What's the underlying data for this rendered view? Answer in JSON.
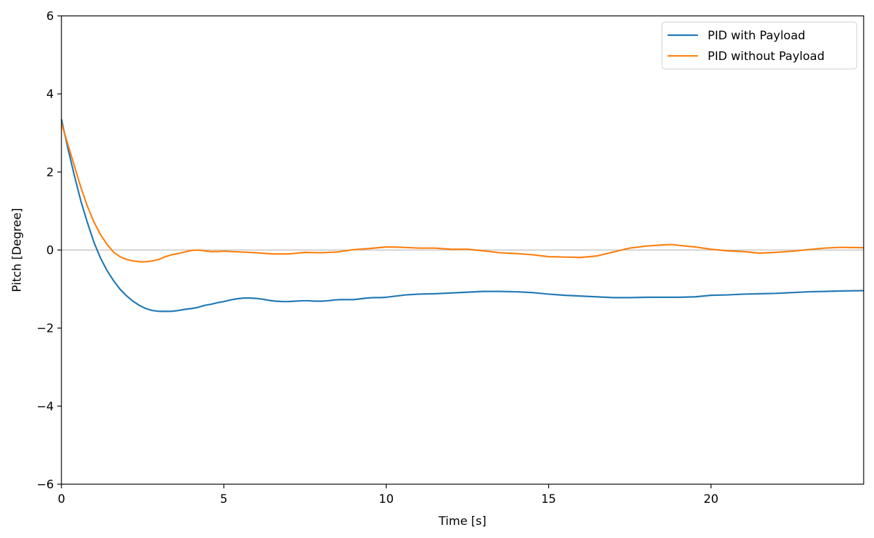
{
  "chart_data": {
    "type": "line",
    "title": "",
    "xlabel": "Time [s]",
    "ylabel": "Pitch [Degree]",
    "xlim": [
      0,
      24.7
    ],
    "ylim": [
      -6,
      6
    ],
    "xticks": [
      0,
      5,
      10,
      15,
      20
    ],
    "xtick_labels": [
      "0",
      "5",
      "10",
      "15",
      "20"
    ],
    "yticks": [
      -6,
      -4,
      -2,
      0,
      2,
      4,
      6
    ],
    "ytick_labels": [
      "−6",
      "−4",
      "−2",
      "0",
      "2",
      "4",
      "6"
    ],
    "grid": false,
    "zero_line": true,
    "legend_position": "top-right",
    "series": [
      {
        "name": "PID with Payload",
        "color": "#1f77b4",
        "points": [
          [
            0,
            3.35
          ],
          [
            0.2,
            2.6
          ],
          [
            0.4,
            1.9
          ],
          [
            0.6,
            1.25
          ],
          [
            0.8,
            0.7
          ],
          [
            1.0,
            0.2
          ],
          [
            1.2,
            -0.2
          ],
          [
            1.4,
            -0.52
          ],
          [
            1.6,
            -0.78
          ],
          [
            1.8,
            -1.0
          ],
          [
            2.0,
            -1.17
          ],
          [
            2.2,
            -1.31
          ],
          [
            2.4,
            -1.42
          ],
          [
            2.6,
            -1.5
          ],
          [
            2.8,
            -1.55
          ],
          [
            3.0,
            -1.57
          ],
          [
            3.2,
            -1.57
          ],
          [
            3.4,
            -1.57
          ],
          [
            3.6,
            -1.55
          ],
          [
            3.8,
            -1.52
          ],
          [
            4.0,
            -1.5
          ],
          [
            4.2,
            -1.47
          ],
          [
            4.4,
            -1.42
          ],
          [
            4.6,
            -1.39
          ],
          [
            4.8,
            -1.35
          ],
          [
            5.0,
            -1.32
          ],
          [
            5.2,
            -1.28
          ],
          [
            5.4,
            -1.25
          ],
          [
            5.6,
            -1.23
          ],
          [
            5.8,
            -1.23
          ],
          [
            6.0,
            -1.24
          ],
          [
            6.2,
            -1.26
          ],
          [
            6.4,
            -1.29
          ],
          [
            6.6,
            -1.31
          ],
          [
            6.8,
            -1.32
          ],
          [
            7.0,
            -1.32
          ],
          [
            7.2,
            -1.31
          ],
          [
            7.4,
            -1.3
          ],
          [
            7.6,
            -1.3
          ],
          [
            7.8,
            -1.31
          ],
          [
            8.0,
            -1.31
          ],
          [
            8.2,
            -1.3
          ],
          [
            8.4,
            -1.28
          ],
          [
            8.6,
            -1.27
          ],
          [
            8.8,
            -1.27
          ],
          [
            9.0,
            -1.27
          ],
          [
            9.2,
            -1.25
          ],
          [
            9.4,
            -1.23
          ],
          [
            9.6,
            -1.22
          ],
          [
            9.8,
            -1.22
          ],
          [
            10.0,
            -1.21
          ],
          [
            10.2,
            -1.19
          ],
          [
            10.4,
            -1.17
          ],
          [
            10.6,
            -1.15
          ],
          [
            10.8,
            -1.14
          ],
          [
            11.0,
            -1.13
          ],
          [
            11.5,
            -1.12
          ],
          [
            12.0,
            -1.1
          ],
          [
            12.5,
            -1.08
          ],
          [
            13.0,
            -1.06
          ],
          [
            13.5,
            -1.06
          ],
          [
            14.0,
            -1.07
          ],
          [
            14.5,
            -1.09
          ],
          [
            15.0,
            -1.13
          ],
          [
            15.5,
            -1.16
          ],
          [
            16.0,
            -1.18
          ],
          [
            16.5,
            -1.2
          ],
          [
            17.0,
            -1.22
          ],
          [
            17.5,
            -1.22
          ],
          [
            18.0,
            -1.21
          ],
          [
            18.5,
            -1.21
          ],
          [
            19.0,
            -1.21
          ],
          [
            19.5,
            -1.2
          ],
          [
            20.0,
            -1.16
          ],
          [
            20.5,
            -1.15
          ],
          [
            21.0,
            -1.13
          ],
          [
            21.5,
            -1.12
          ],
          [
            22.0,
            -1.11
          ],
          [
            22.5,
            -1.09
          ],
          [
            23.0,
            -1.07
          ],
          [
            23.5,
            -1.06
          ],
          [
            24.0,
            -1.05
          ],
          [
            24.7,
            -1.04
          ]
        ]
      },
      {
        "name": "PID without Payload",
        "color": "#ff7f0e",
        "points": [
          [
            0,
            3.25
          ],
          [
            0.2,
            2.7
          ],
          [
            0.4,
            2.15
          ],
          [
            0.6,
            1.6
          ],
          [
            0.8,
            1.12
          ],
          [
            1.0,
            0.72
          ],
          [
            1.2,
            0.4
          ],
          [
            1.4,
            0.15
          ],
          [
            1.6,
            -0.05
          ],
          [
            1.8,
            -0.17
          ],
          [
            2.0,
            -0.24
          ],
          [
            2.2,
            -0.28
          ],
          [
            2.4,
            -0.3
          ],
          [
            2.6,
            -0.3
          ],
          [
            2.8,
            -0.28
          ],
          [
            3.0,
            -0.24
          ],
          [
            3.2,
            -0.17
          ],
          [
            3.4,
            -0.12
          ],
          [
            3.6,
            -0.09
          ],
          [
            3.8,
            -0.05
          ],
          [
            4.0,
            -0.01
          ],
          [
            4.2,
            0.0
          ],
          [
            4.4,
            -0.02
          ],
          [
            4.6,
            -0.04
          ],
          [
            4.8,
            -0.04
          ],
          [
            5.0,
            -0.03
          ],
          [
            5.5,
            -0.05
          ],
          [
            6.0,
            -0.07
          ],
          [
            6.5,
            -0.1
          ],
          [
            7.0,
            -0.1
          ],
          [
            7.5,
            -0.06
          ],
          [
            8.0,
            -0.07
          ],
          [
            8.5,
            -0.05
          ],
          [
            9.0,
            0.01
          ],
          [
            9.5,
            0.04
          ],
          [
            10.0,
            0.08
          ],
          [
            10.5,
            0.07
          ],
          [
            11.0,
            0.05
          ],
          [
            11.5,
            0.05
          ],
          [
            12.0,
            0.02
          ],
          [
            12.5,
            0.02
          ],
          [
            13.0,
            -0.02
          ],
          [
            13.5,
            -0.07
          ],
          [
            14.0,
            -0.09
          ],
          [
            14.5,
            -0.12
          ],
          [
            15.0,
            -0.17
          ],
          [
            15.5,
            -0.18
          ],
          [
            16.0,
            -0.19
          ],
          [
            16.5,
            -0.15
          ],
          [
            17.0,
            -0.05
          ],
          [
            17.5,
            0.05
          ],
          [
            18.0,
            0.1
          ],
          [
            18.5,
            0.13
          ],
          [
            18.8,
            0.14
          ],
          [
            19.0,
            0.12
          ],
          [
            19.5,
            0.08
          ],
          [
            20.0,
            0.02
          ],
          [
            20.5,
            -0.02
          ],
          [
            21.0,
            -0.04
          ],
          [
            21.5,
            -0.08
          ],
          [
            22.0,
            -0.06
          ],
          [
            22.5,
            -0.03
          ],
          [
            23.0,
            0.01
          ],
          [
            23.5,
            0.05
          ],
          [
            24.0,
            0.07
          ],
          [
            24.7,
            0.06
          ]
        ]
      }
    ]
  }
}
